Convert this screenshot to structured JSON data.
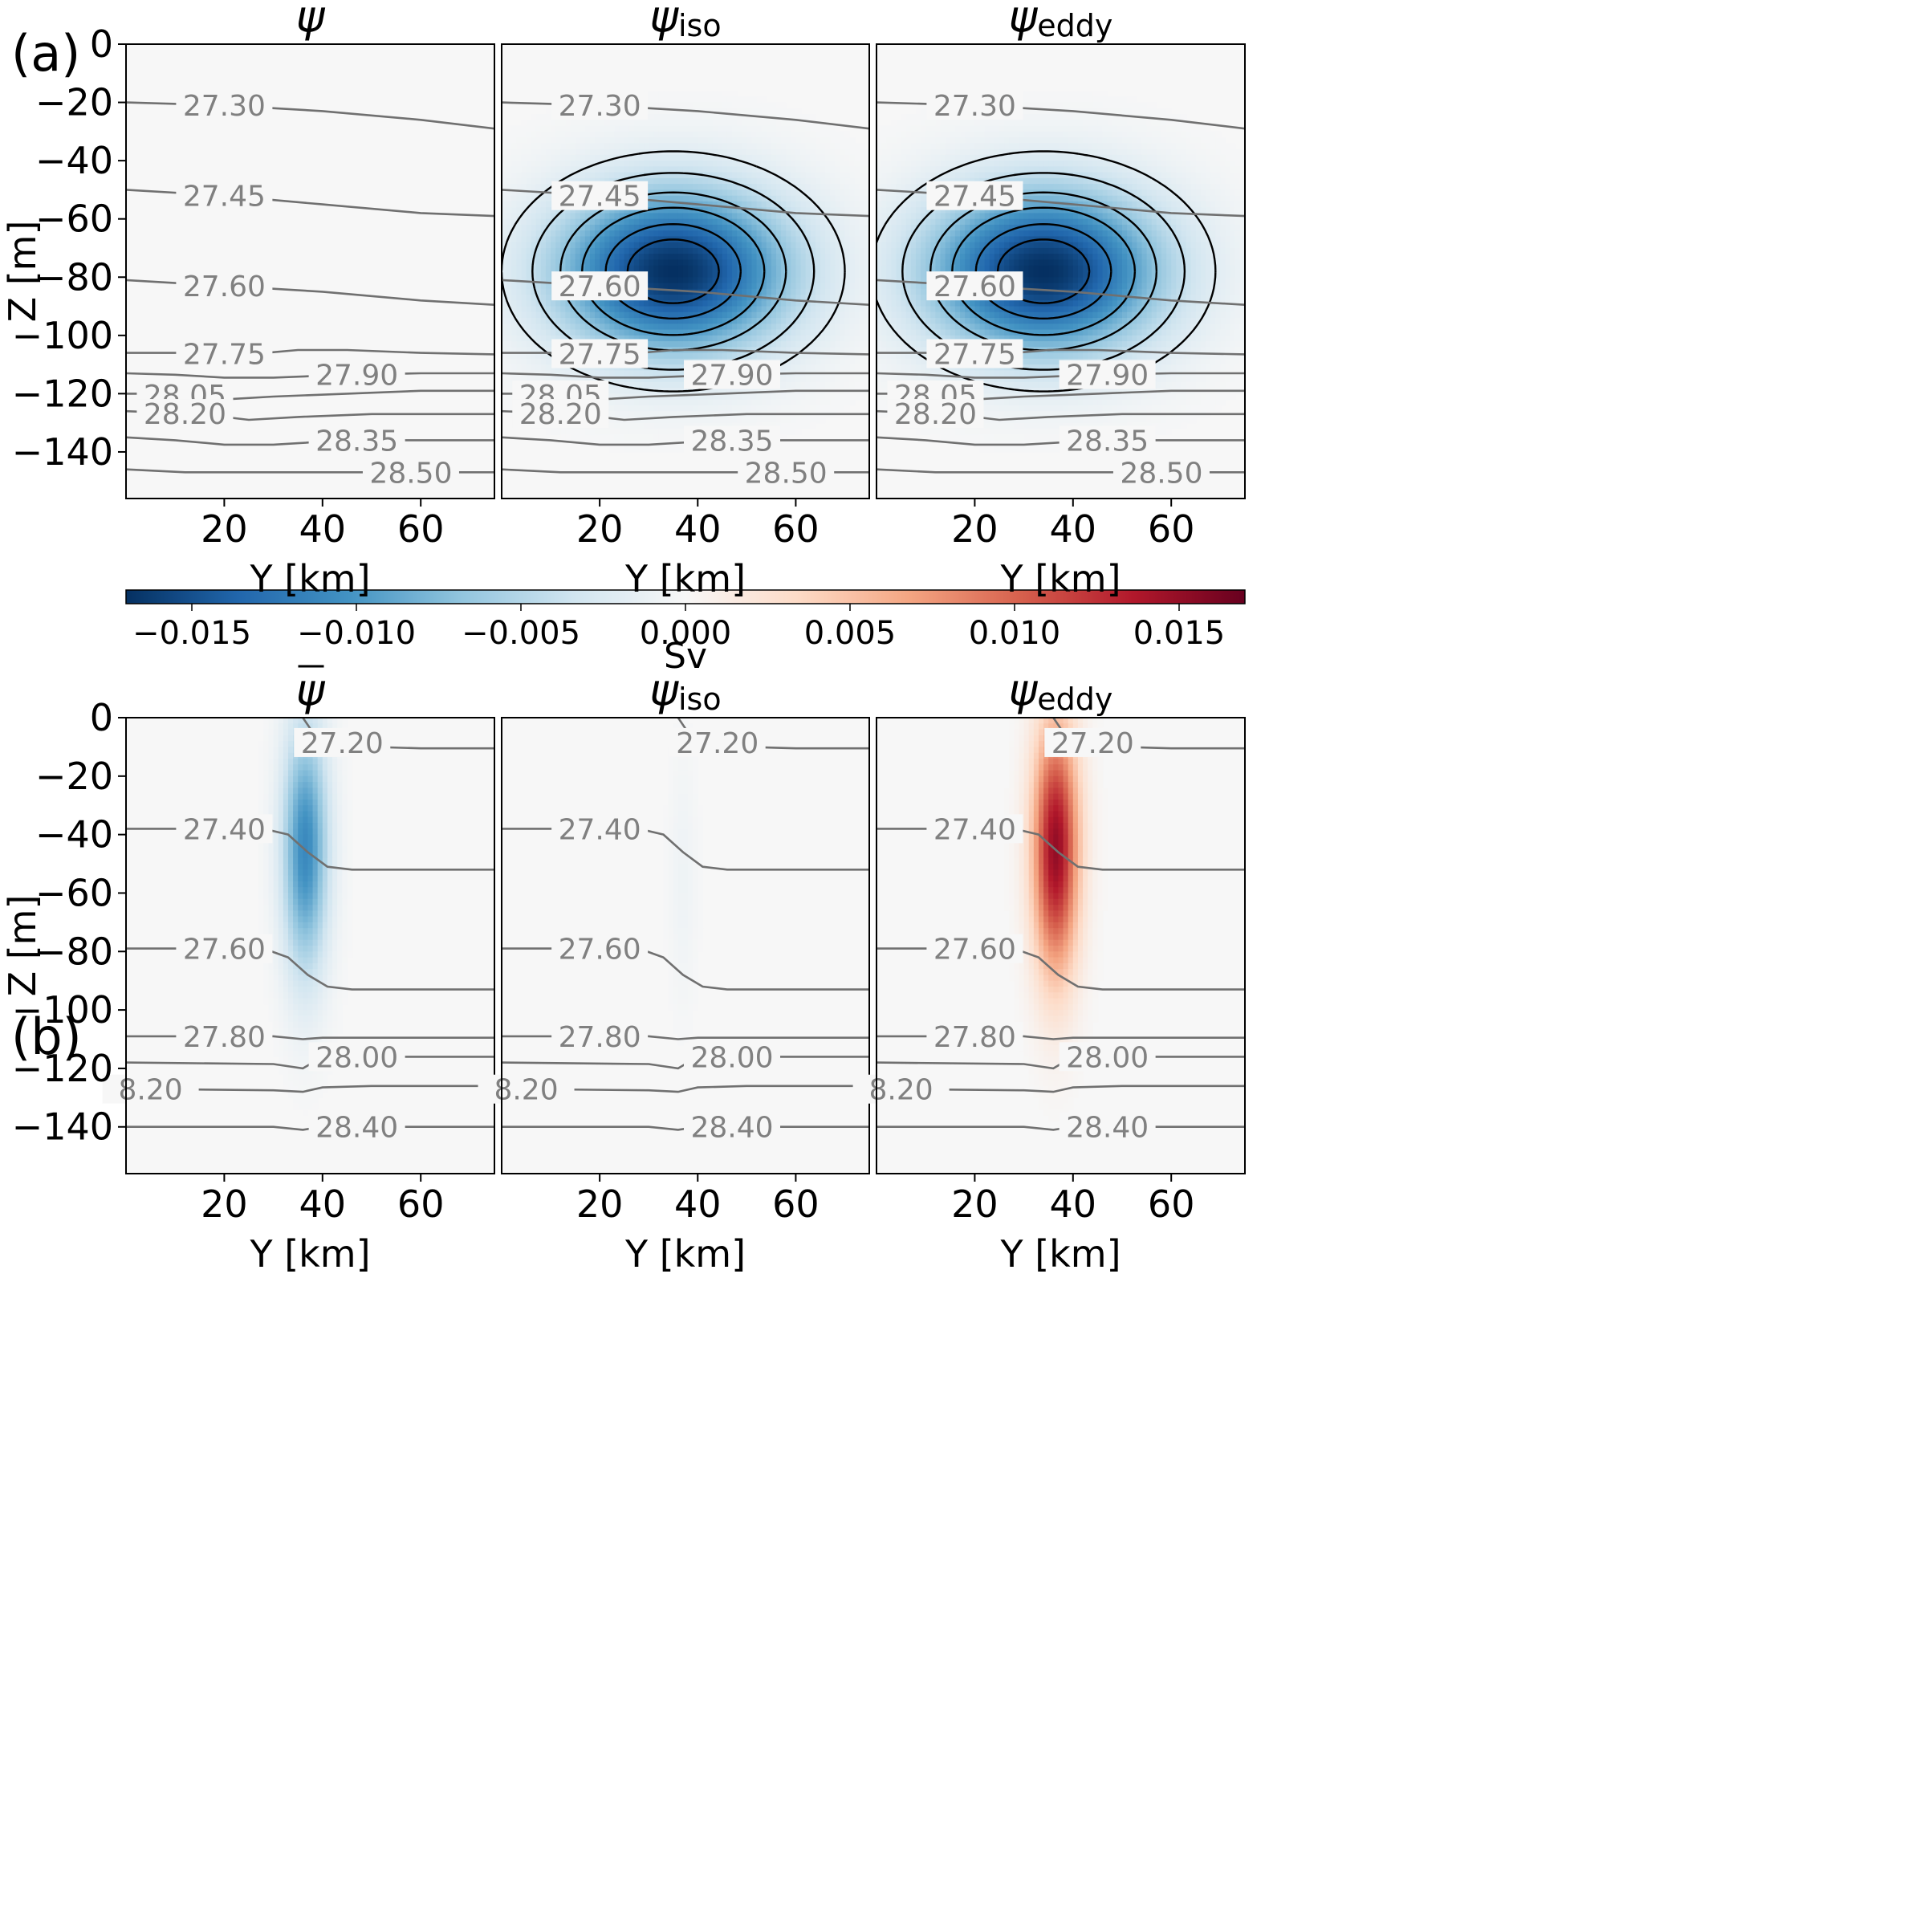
{
  "colors": {
    "cmap": [
      "#053061",
      "#2166ac",
      "#4393c3",
      "#92c5de",
      "#d1e5f0",
      "#f7f7f7",
      "#fddbc7",
      "#f4a582",
      "#d6604d",
      "#b2182b",
      "#67001f"
    ],
    "isopycnal_line": "#707070",
    "isopycnal_label": "#808080",
    "dashed_contour": "#000000"
  },
  "labels": {
    "panel_a": "(a)",
    "panel_b": "(b)",
    "colorbar_label": "Sv",
    "z_axis": "Z [m]",
    "y_axis": "Y [km]"
  },
  "chart_data": [
    {
      "type": "heatmap",
      "panel": "(a)",
      "titles": [
        "ψ̄",
        "ψ_iso",
        "ψ_eddy"
      ],
      "xlabel": "Y [km]",
      "ylabel": "Z [m]",
      "xlim": [
        0,
        75
      ],
      "ylim": [
        -156,
        0
      ],
      "xticks": [
        20,
        40,
        60
      ],
      "yticks": [
        0,
        -20,
        -40,
        -60,
        -80,
        -100,
        -120,
        -140
      ],
      "colorbar": {
        "label": "Sv",
        "range": [
          -0.017,
          0.017
        ],
        "ticks": [
          "−0.015",
          "−0.010",
          "−0.005",
          "0.000",
          "0.005",
          "0.010",
          "0.015"
        ]
      },
      "isopycnals": [
        {
          "label": "27.30",
          "label_y": 20,
          "pts": [
            [
              0,
              -20
            ],
            [
              20,
              -21
            ],
            [
              40,
              -23
            ],
            [
              60,
              -26
            ],
            [
              75,
              -29
            ]
          ]
        },
        {
          "label": "27.45",
          "label_y": 20,
          "pts": [
            [
              0,
              -50
            ],
            [
              20,
              -52
            ],
            [
              40,
              -55
            ],
            [
              60,
              -58
            ],
            [
              75,
              -59
            ]
          ]
        },
        {
          "label": "27.60",
          "label_y": 20,
          "pts": [
            [
              0,
              -81
            ],
            [
              20,
              -83
            ],
            [
              40,
              -85
            ],
            [
              60,
              -88
            ],
            [
              75,
              -89.5
            ]
          ]
        },
        {
          "label": "27.75",
          "label_y": 20,
          "pts": [
            [
              0,
              -106
            ],
            [
              15,
              -106
            ],
            [
              25,
              -106.5
            ],
            [
              35,
              -105
            ],
            [
              45,
              -105
            ],
            [
              60,
              -106
            ],
            [
              75,
              -106.5
            ]
          ]
        },
        {
          "label": "27.90",
          "label_y": 47,
          "pts": [
            [
              0,
              -113
            ],
            [
              10,
              -113.5
            ],
            [
              20,
              -114.5
            ],
            [
              30,
              -114.5
            ],
            [
              45,
              -113.5
            ],
            [
              60,
              -113
            ],
            [
              75,
              -113
            ]
          ]
        },
        {
          "label": "28.05",
          "label_y": 12,
          "pts": [
            [
              0,
              -120
            ],
            [
              10,
              -120
            ],
            [
              20,
              -122
            ],
            [
              30,
              -121
            ],
            [
              45,
              -120
            ],
            [
              60,
              -119
            ],
            [
              75,
              -119
            ]
          ]
        },
        {
          "label": "28.20",
          "label_y": 12,
          "pts": [
            [
              0,
              -126
            ],
            [
              15,
              -127
            ],
            [
              25,
              -129
            ],
            [
              35,
              -128
            ],
            [
              50,
              -127
            ],
            [
              75,
              -127
            ]
          ]
        },
        {
          "label": "28.35",
          "label_y": 47,
          "pts": [
            [
              0,
              -135
            ],
            [
              10,
              -136
            ],
            [
              20,
              -137.5
            ],
            [
              30,
              -137.5
            ],
            [
              45,
              -136
            ],
            [
              60,
              -136
            ],
            [
              75,
              -136
            ]
          ]
        },
        {
          "label": "28.50",
          "label_y": 58,
          "pts": [
            [
              0,
              -146
            ],
            [
              12,
              -147
            ],
            [
              42,
              -147
            ],
            [
              60,
              -147
            ],
            [
              75,
              -147
            ]
          ]
        }
      ],
      "fields": [
        {
          "title": "ψ̄",
          "blobs": [],
          "dashed_levels": []
        },
        {
          "title": "ψ_iso",
          "blobs": [
            {
              "y0": 35,
              "z0": -78,
              "sy": 17,
              "sz": 20,
              "amp": -0.017
            }
          ],
          "dashed_levels": [
            0.12,
            0.24,
            0.4,
            0.55,
            0.72,
            0.86
          ]
        },
        {
          "title": "ψ_eddy",
          "blobs": [
            {
              "y0": 34,
              "z0": -78,
              "sy": 17,
              "sz": 20,
              "amp": -0.017
            }
          ],
          "dashed_levels": [
            0.12,
            0.24,
            0.4,
            0.55,
            0.72,
            0.86
          ]
        }
      ]
    },
    {
      "type": "heatmap",
      "panel": "(b)",
      "titles": [
        "ψ̄",
        "ψ_iso",
        "ψ_eddy"
      ],
      "xlabel": "Y [km]",
      "ylabel": "Z [m]",
      "xlim": [
        0,
        75
      ],
      "ylim": [
        -156,
        0
      ],
      "xticks": [
        20,
        40,
        60
      ],
      "yticks": [
        0,
        -20,
        -40,
        -60,
        -80,
        -100,
        -120,
        -140
      ],
      "isopycnals": [
        {
          "label": "27.20",
          "label_y": 44,
          "pts": [
            [
              36,
              0
            ],
            [
              38,
              -5
            ],
            [
              42,
              -8
            ],
            [
              50,
              -10
            ],
            [
              60,
              -10.5
            ],
            [
              75,
              -10.5
            ]
          ]
        },
        {
          "label": "27.40",
          "label_y": 20,
          "pts": [
            [
              0,
              -38
            ],
            [
              28,
              -38
            ],
            [
              33,
              -40
            ],
            [
              37,
              -46
            ],
            [
              41,
              -51
            ],
            [
              46,
              -52
            ],
            [
              75,
              -52
            ]
          ]
        },
        {
          "label": "27.60",
          "label_y": 20,
          "pts": [
            [
              0,
              -79
            ],
            [
              28,
              -79
            ],
            [
              33,
              -82
            ],
            [
              37,
              -88
            ],
            [
              41,
              -92
            ],
            [
              46,
              -93
            ],
            [
              75,
              -93
            ]
          ]
        },
        {
          "label": "27.80",
          "label_y": 20,
          "pts": [
            [
              0,
              -109
            ],
            [
              30,
              -109
            ],
            [
              36,
              -110
            ],
            [
              40,
              -109.5
            ],
            [
              75,
              -109.5
            ]
          ]
        },
        {
          "label": "28.00",
          "label_y": 47,
          "pts": [
            [
              0,
              -118
            ],
            [
              30,
              -118.5
            ],
            [
              36,
              -120
            ],
            [
              39,
              -117
            ],
            [
              45,
              -116
            ],
            [
              75,
              -116
            ]
          ]
        },
        {
          "label": "8.20",
          "label_y": 5,
          "pts": [
            [
              0,
              -127
            ],
            [
              30,
              -127.5
            ],
            [
              36,
              -128
            ],
            [
              40,
              -126.5
            ],
            [
              50,
              -126
            ],
            [
              75,
              -126
            ]
          ]
        },
        {
          "label": "28.40",
          "label_y": 47,
          "pts": [
            [
              0,
              -140
            ],
            [
              30,
              -140
            ],
            [
              36,
              -141
            ],
            [
              40,
              -140
            ],
            [
              75,
              -140
            ]
          ]
        }
      ],
      "fields": [
        {
          "title": "ψ̄",
          "blobs": [
            {
              "y0": 36.5,
              "z0": -45,
              "sy": 3.3,
              "sz": 30,
              "amp": -0.011
            }
          ],
          "dashed_levels": []
        },
        {
          "title": "ψ_iso",
          "blobs": [
            {
              "y0": 37,
              "z0": -55,
              "sy": 2,
              "sz": 30,
              "amp": -0.0008
            }
          ],
          "dashed_levels": []
        },
        {
          "title": "ψ_eddy",
          "blobs": [
            {
              "y0": 36.5,
              "z0": -45,
              "sy": 3.3,
              "sz": 30,
              "amp": 0.015
            }
          ],
          "dashed_levels": []
        }
      ]
    }
  ]
}
